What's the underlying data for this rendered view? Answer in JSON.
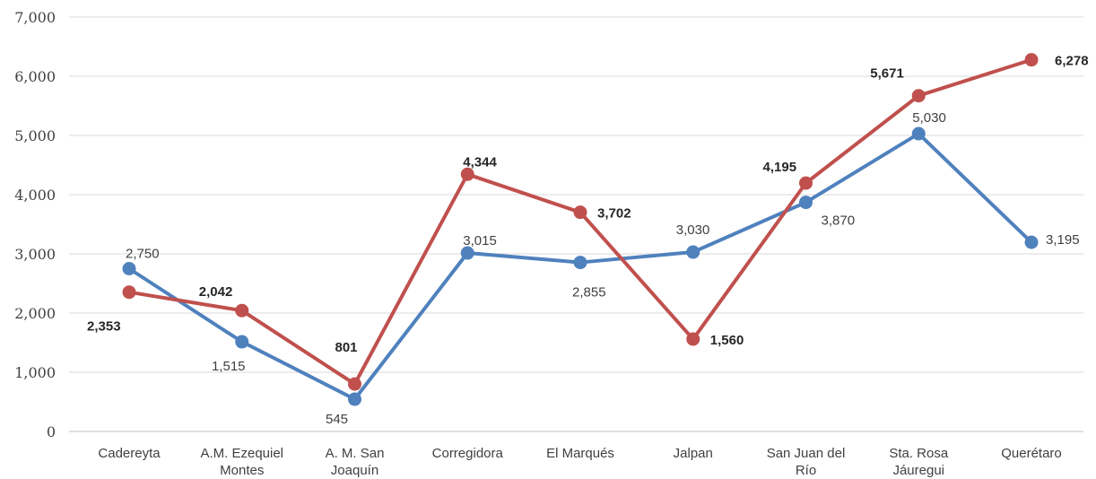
{
  "chart_data": {
    "type": "line",
    "categories": [
      [
        "Cadereyta"
      ],
      [
        "A.M. Ezequiel",
        "Montes"
      ],
      [
        "A. M. San",
        "Joaquín"
      ],
      [
        "Corregidora"
      ],
      [
        "El Marqués"
      ],
      [
        "Jalpan"
      ],
      [
        "San Juan del",
        "Río"
      ],
      [
        "Sta. Rosa",
        "Jáuregui"
      ],
      [
        "Querétaro"
      ]
    ],
    "series": [
      {
        "color": "#4f81bd",
        "values": [
          2750,
          1515,
          545,
          3015,
          2855,
          3030,
          3870,
          5030,
          3195
        ],
        "labels": [
          "2,750",
          "1,515",
          "545",
          "3,015",
          "2,855",
          "3,030",
          "3,870",
          "5,030",
          "3,195"
        ],
        "label_style": "normal"
      },
      {
        "color": "#c0504d",
        "values": [
          2353,
          2042,
          801,
          4344,
          3702,
          1560,
          4195,
          5671,
          6278
        ],
        "labels": [
          "2,353",
          "2,042",
          "801",
          "4,344",
          "3,702",
          "1,560",
          "4,195",
          "5,671",
          "6,278"
        ],
        "label_style": "bold"
      }
    ],
    "y_ticks": [
      "0",
      "1,000",
      "2,000",
      "3,000",
      "4,000",
      "5,000",
      "6,000",
      "7,000"
    ],
    "ylim": [
      0,
      7000
    ],
    "grid": true,
    "title": "",
    "xlabel": "",
    "ylabel": ""
  }
}
